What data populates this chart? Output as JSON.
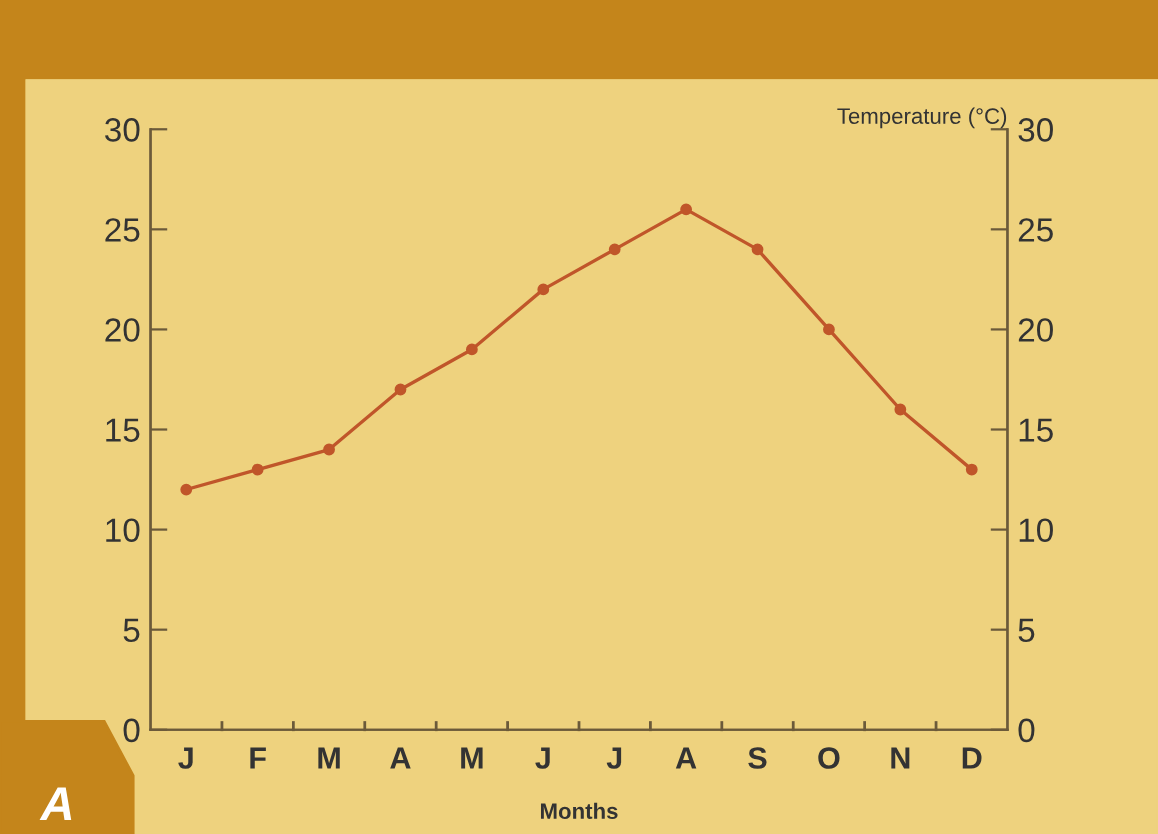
{
  "chart_data": {
    "type": "line",
    "xlabel": "Months",
    "y2label": "Temperature (°C)",
    "categories": [
      "J",
      "F",
      "M",
      "A",
      "M",
      "J",
      "J",
      "A",
      "S",
      "O",
      "N",
      "D"
    ],
    "series": [
      {
        "color": "#c0562a",
        "values": [
          12,
          13,
          14,
          17,
          19,
          22,
          24,
          26,
          24,
          20,
          16,
          13
        ]
      }
    ],
    "ylim": [
      0,
      30
    ],
    "yticks": [
      0,
      5,
      10,
      15,
      20,
      25,
      30
    ],
    "y2lim": [
      0,
      30
    ],
    "y2ticks": [
      0,
      5,
      10,
      15,
      20,
      25,
      30
    ],
    "marker": "circle",
    "line_style": "solid",
    "grid": false,
    "legend": false,
    "annotations": [
      "A"
    ]
  }
}
